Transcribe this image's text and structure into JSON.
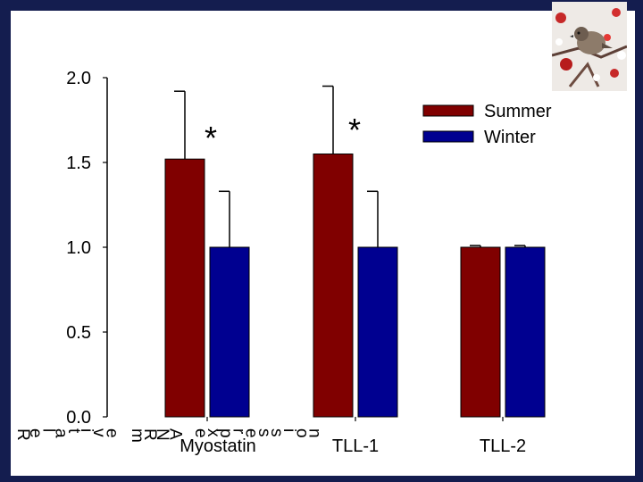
{
  "colors": {
    "summer": "#800000",
    "winter": "#000090",
    "frame": "#141d4f"
  },
  "chart_data": {
    "type": "bar",
    "categories": [
      "Myostatin",
      "TLL-1",
      "TLL-2"
    ],
    "series": [
      {
        "name": "Summer",
        "values": [
          1.52,
          1.55,
          1.0
        ],
        "errors": [
          0.4,
          0.4,
          0.01
        ]
      },
      {
        "name": "Winter",
        "values": [
          1.0,
          1.0,
          1.0
        ],
        "errors": [
          0.33,
          0.33,
          0.01
        ]
      }
    ],
    "ylim": [
      0.0,
      2.0
    ],
    "yticks": [
      "0.0",
      "0.5",
      "1.0",
      "1.5",
      "2.0"
    ],
    "ylabel": "Relative mRNA expression",
    "annotations": [
      {
        "category": "Myostatin",
        "text": "*"
      },
      {
        "category": "TLL-1",
        "text": "*"
      }
    ],
    "legend": {
      "position": "top-right",
      "entries": [
        "Summer",
        "Winter"
      ]
    },
    "grid": false
  }
}
